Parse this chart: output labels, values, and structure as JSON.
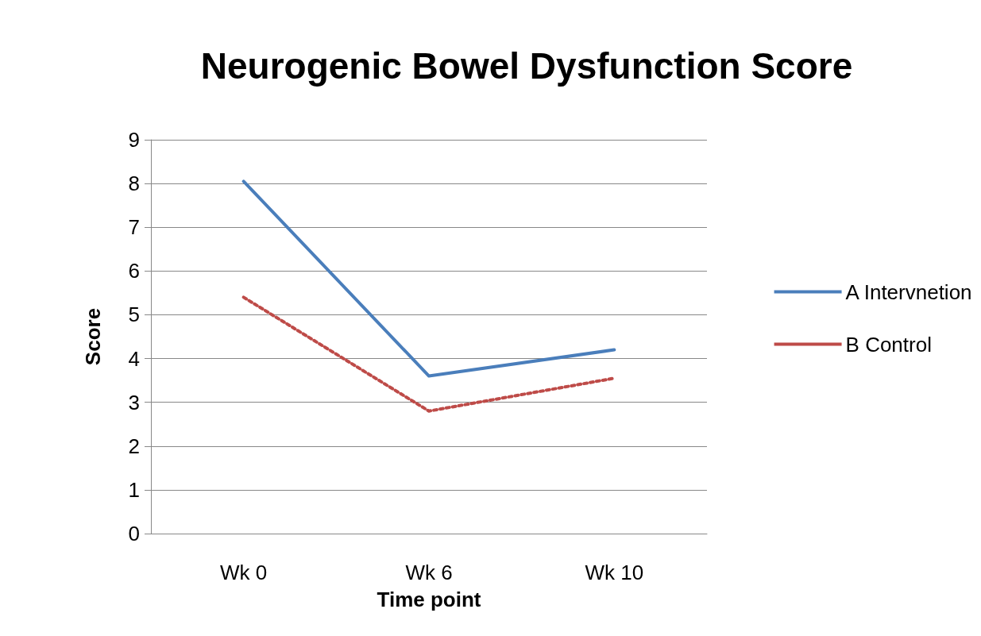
{
  "chart_data": {
    "type": "line",
    "title": "Neurogenic Bowel Dysfunction Score",
    "xlabel": "Time point",
    "ylabel": "Score",
    "categories": [
      "Wk 0",
      "Wk 6",
      "Wk 10"
    ],
    "series": [
      {
        "name": "A Intervnetion",
        "color": "#4a7ebb",
        "values": [
          8.05,
          3.6,
          4.2
        ],
        "line_style": "solid"
      },
      {
        "name": "B Control",
        "color": "#be4b48",
        "values": [
          5.4,
          2.8,
          3.55
        ],
        "line_style": "dotted"
      }
    ],
    "ylim": [
      0,
      9
    ],
    "yticks": [
      0,
      1,
      2,
      3,
      4,
      5,
      6,
      7,
      8,
      9
    ],
    "grid": "y",
    "legend": "right",
    "marker": "none"
  }
}
